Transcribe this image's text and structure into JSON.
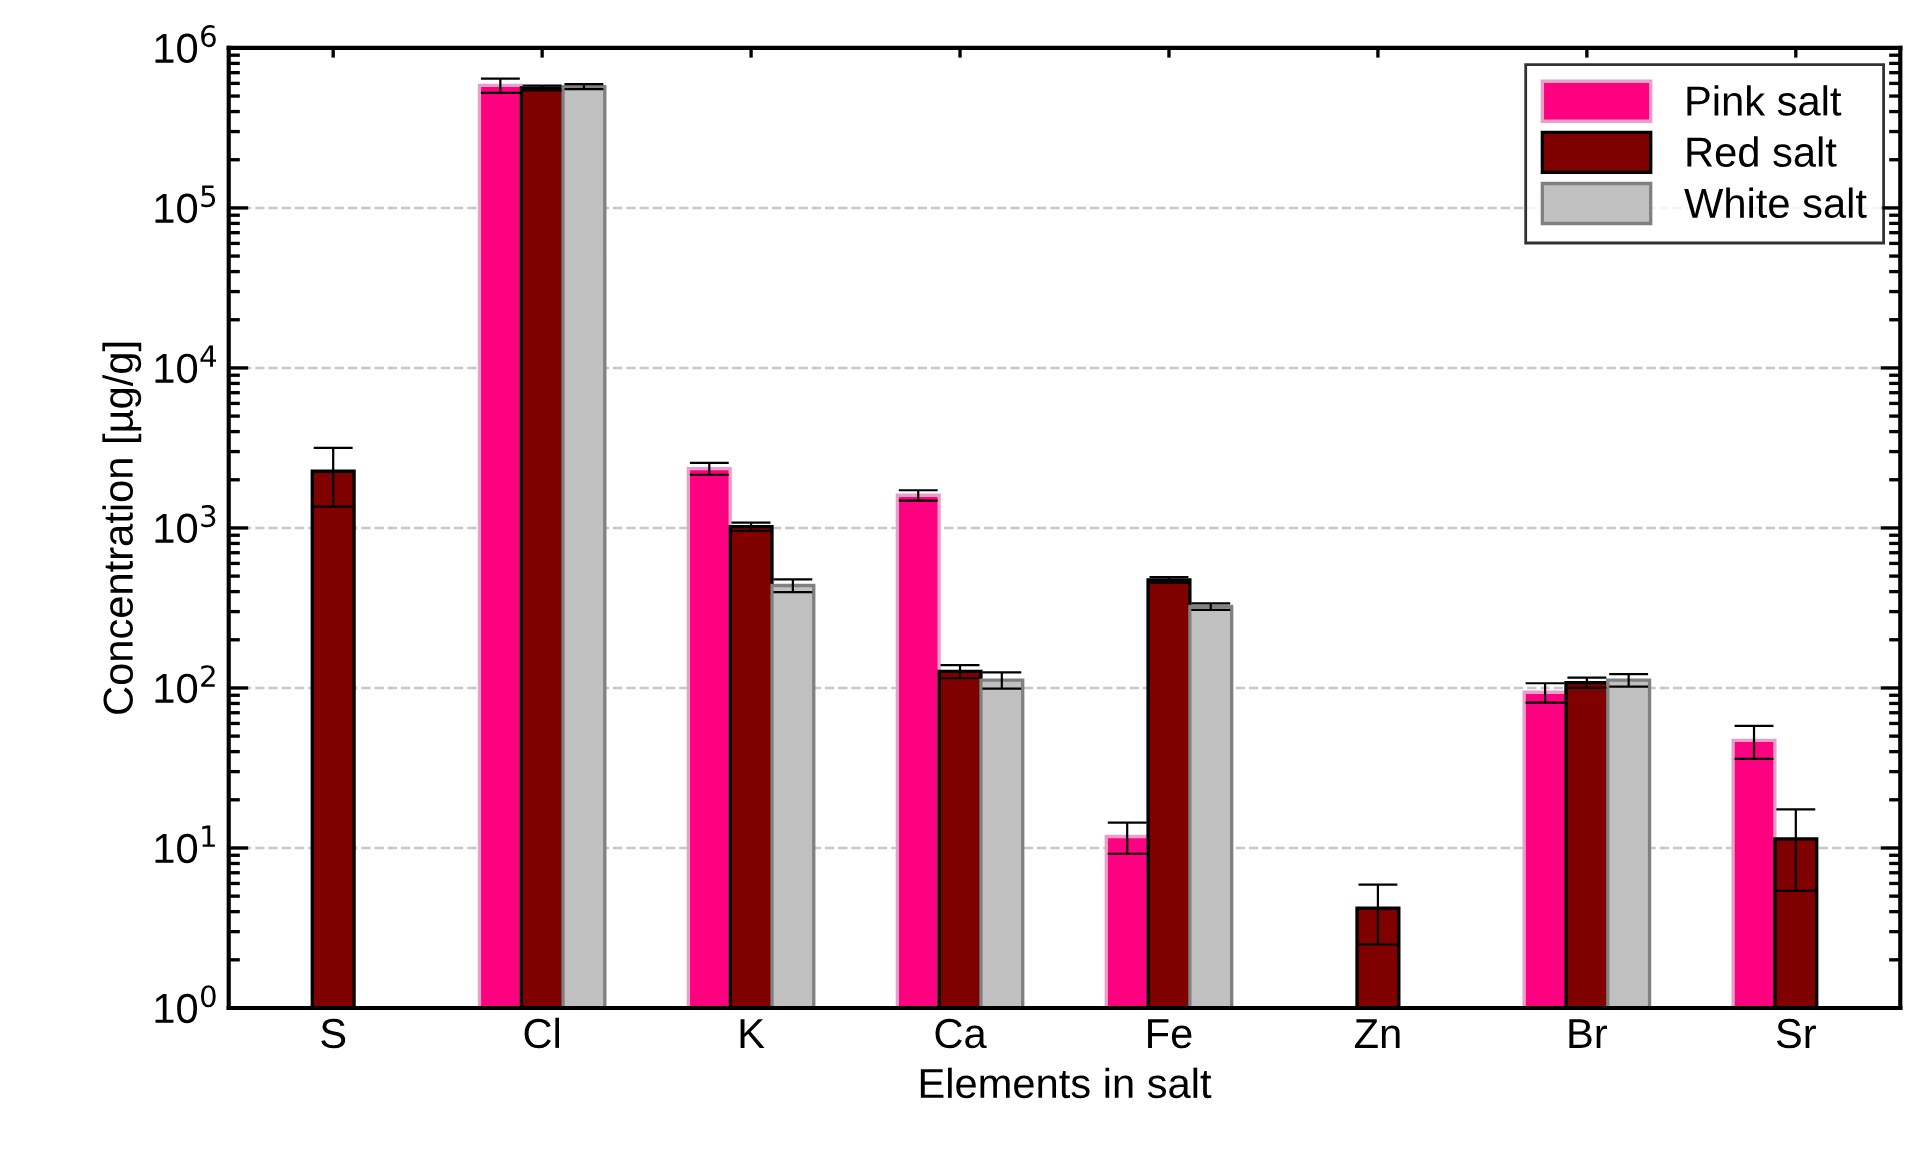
{
  "chart_data": {
    "type": "bar",
    "xlabel": "Elements in salt",
    "ylabel": "Concentration [µg/g]",
    "categories": [
      "S",
      "Cl",
      "K",
      "Ca",
      "Fe",
      "Zn",
      "Br",
      "Sr"
    ],
    "series": [
      {
        "name": "Pink salt",
        "color": "#ff0080",
        "values": [
          null,
          583000,
          2350,
          1600,
          11.8,
          null,
          94,
          47
        ],
        "errors": [
          null,
          60000,
          200,
          120,
          2.6,
          null,
          13,
          11
        ]
      },
      {
        "name": "Red salt",
        "color": "#800000",
        "values": [
          2260,
          562000,
          1020,
          127,
          473,
          4.2,
          108,
          11.4
        ],
        "errors": [
          900,
          20000,
          60,
          12,
          20,
          1.7,
          8,
          6
        ]
      },
      {
        "name": "White salt",
        "color": "#c0c0c0",
        "values": [
          null,
          573000,
          437,
          112,
          323,
          null,
          112,
          null
        ],
        "errors": [
          null,
          20000,
          40,
          13,
          15,
          null,
          10,
          null
        ]
      }
    ],
    "log": true,
    "ylim": [
      1,
      1000000
    ],
    "yticks": [
      {
        "value": 1,
        "label": "10$^{0}$"
      },
      {
        "value": 10,
        "label": "10$^{1}$"
      },
      {
        "value": 100,
        "label": "10$^{2}$"
      },
      {
        "value": 1000,
        "label": "10$^{3}$"
      },
      {
        "value": 10000,
        "label": "10$^{4}$"
      },
      {
        "value": 100000,
        "label": "10$^{5}$"
      },
      {
        "value": 1000000,
        "label": "10$^{6}$"
      }
    ],
    "grid": "y",
    "legend": "top right"
  }
}
